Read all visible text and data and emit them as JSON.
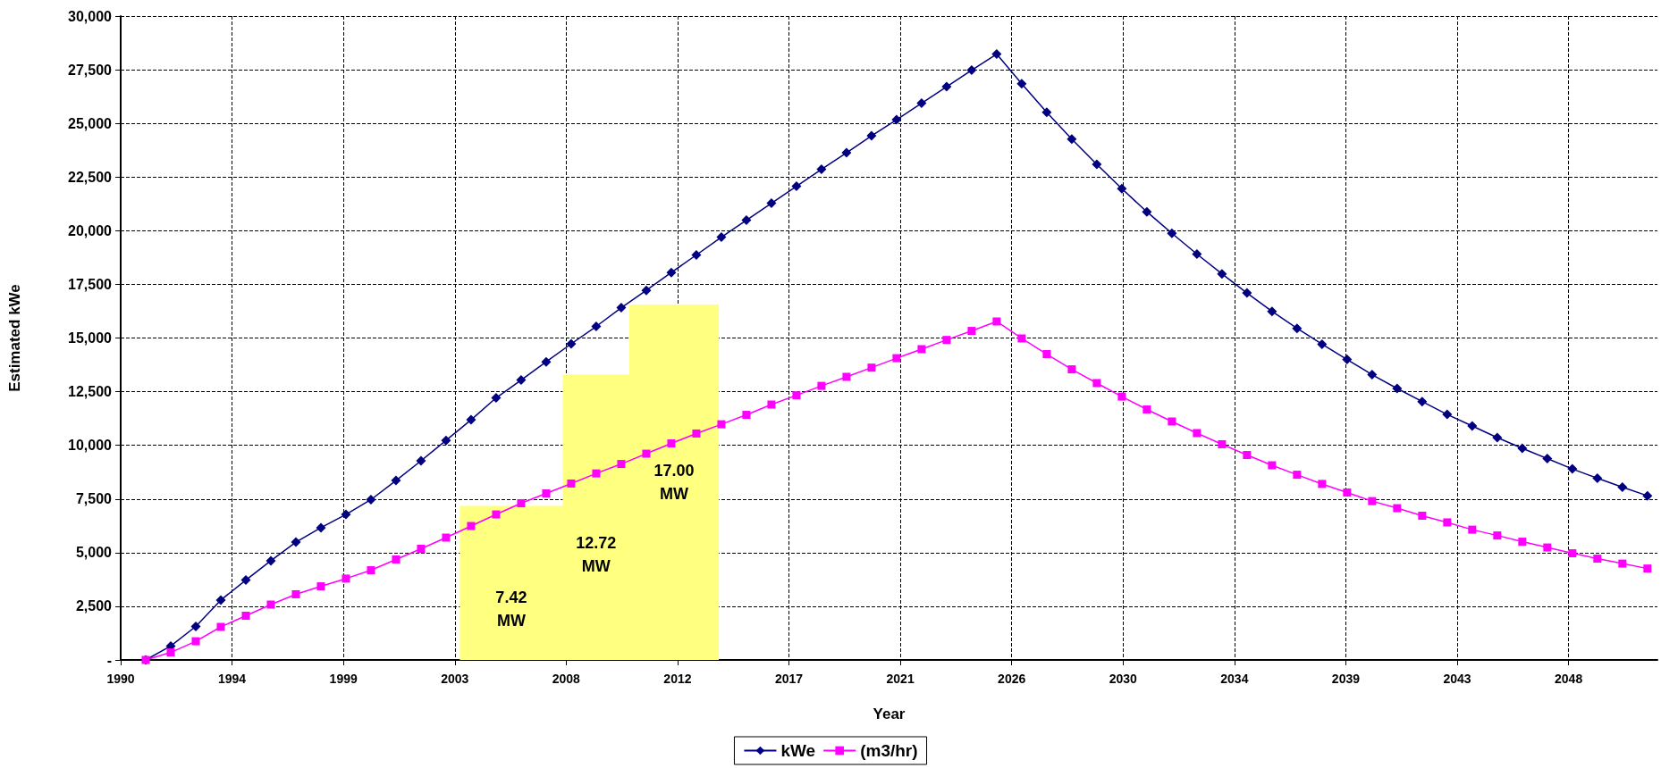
{
  "chart_data": {
    "type": "line",
    "xlabel": "Year",
    "ylabel": "Estimated kWe",
    "x": [
      1991,
      1992,
      1993,
      1994,
      1995,
      1996,
      1997,
      1998,
      1999,
      2000,
      2001,
      2002,
      2003,
      2004,
      2005,
      2006,
      2007,
      2008,
      2009,
      2010,
      2011,
      2012,
      2013,
      2014,
      2015,
      2016,
      2017,
      2018,
      2019,
      2020,
      2021,
      2022,
      2023,
      2024,
      2025,
      2026,
      2027,
      2028,
      2029,
      2030,
      2031,
      2032,
      2033,
      2034,
      2035,
      2036,
      2037,
      2038,
      2039,
      2040,
      2041,
      2042,
      2043,
      2044,
      2045,
      2046,
      2047,
      2048,
      2049,
      2050,
      2051
    ],
    "series": [
      {
        "type": "area",
        "color": "#ffff80",
        "x": [
          2003.55,
          2007.66,
          2007.66,
          2010.32,
          2010.32,
          2013.9
        ],
        "values": [
          7180,
          7180,
          13290,
          13290,
          16560,
          16560
        ]
      },
      {
        "name": "kWe",
        "color": "#000080",
        "marker": "diamond",
        "values": [
          0,
          650,
          1560,
          2790,
          3720,
          4620,
          5490,
          6160,
          6780,
          7470,
          8360,
          9280,
          10230,
          11190,
          12210,
          13040,
          13890,
          14730,
          15540,
          16410,
          17220,
          18050,
          18870,
          19700,
          20490,
          21280,
          22070,
          22860,
          23630,
          24420,
          25170,
          25940,
          26710,
          27480,
          28230,
          26850,
          25520,
          24270,
          23090,
          21960,
          20880,
          19880,
          18910,
          17990,
          17100,
          16240,
          15450,
          14710,
          14000,
          13290,
          12650,
          12040,
          11440,
          10900,
          10360,
          9860,
          9380,
          8900,
          8470,
          8050,
          7650
        ]
      },
      {
        "name": "(m3/hr)",
        "color": "#ff00ff",
        "marker": "square",
        "values": [
          0,
          350,
          870,
          1540,
          2060,
          2580,
          3060,
          3430,
          3790,
          4180,
          4680,
          5180,
          5700,
          6240,
          6780,
          7300,
          7760,
          8220,
          8690,
          9130,
          9610,
          10090,
          10550,
          10980,
          11420,
          11900,
          12330,
          12770,
          13190,
          13620,
          14060,
          14480,
          14910,
          15330,
          15770,
          14980,
          14250,
          13540,
          12900,
          12270,
          11670,
          11110,
          10570,
          10050,
          9550,
          9070,
          8630,
          8200,
          7800,
          7400,
          7070,
          6720,
          6410,
          6070,
          5800,
          5510,
          5240,
          4970,
          4720,
          4490,
          4260
        ]
      }
    ],
    "annotations": [
      "7.42 MW",
      "12.72 MW",
      "17.00 MW"
    ],
    "xlim": [
      1990,
      2051.4
    ],
    "xticks": [
      {
        "value": 1990,
        "label": "1990"
      },
      {
        "value": 1994.45,
        "label": "1994"
      },
      {
        "value": 1998.9,
        "label": "1999"
      },
      {
        "value": 2003.35,
        "label": "2003"
      },
      {
        "value": 2007.8,
        "label": "2008"
      },
      {
        "value": 2012.25,
        "label": "2012"
      },
      {
        "value": 2016.7,
        "label": "2017"
      },
      {
        "value": 2021.15,
        "label": "2021"
      },
      {
        "value": 2025.6,
        "label": "2026"
      },
      {
        "value": 2030.05,
        "label": "2030"
      },
      {
        "value": 2034.5,
        "label": "2034"
      },
      {
        "value": 2038.95,
        "label": "2039"
      },
      {
        "value": 2043.4,
        "label": "2043"
      },
      {
        "value": 2047.85,
        "label": "2048"
      }
    ],
    "ylim": [
      0,
      30000
    ],
    "yticks": [
      {
        "value": 0,
        "label": "-"
      },
      {
        "value": 2500,
        "label": "2,500"
      },
      {
        "value": 5000,
        "label": "5,000"
      },
      {
        "value": 7500,
        "label": "7,500"
      },
      {
        "value": 10000,
        "label": "10,000"
      },
      {
        "value": 12500,
        "label": "12,500"
      },
      {
        "value": 15000,
        "label": "15,000"
      },
      {
        "value": 17500,
        "label": "17,500"
      },
      {
        "value": 20000,
        "label": "20,000"
      },
      {
        "value": 22500,
        "label": "22,500"
      },
      {
        "value": 25000,
        "label": "25,000"
      },
      {
        "value": 27500,
        "label": "27,500"
      },
      {
        "value": 30000,
        "label": "30,000"
      }
    ],
    "grid": true,
    "line_style": "solid",
    "legend": "bottom"
  }
}
